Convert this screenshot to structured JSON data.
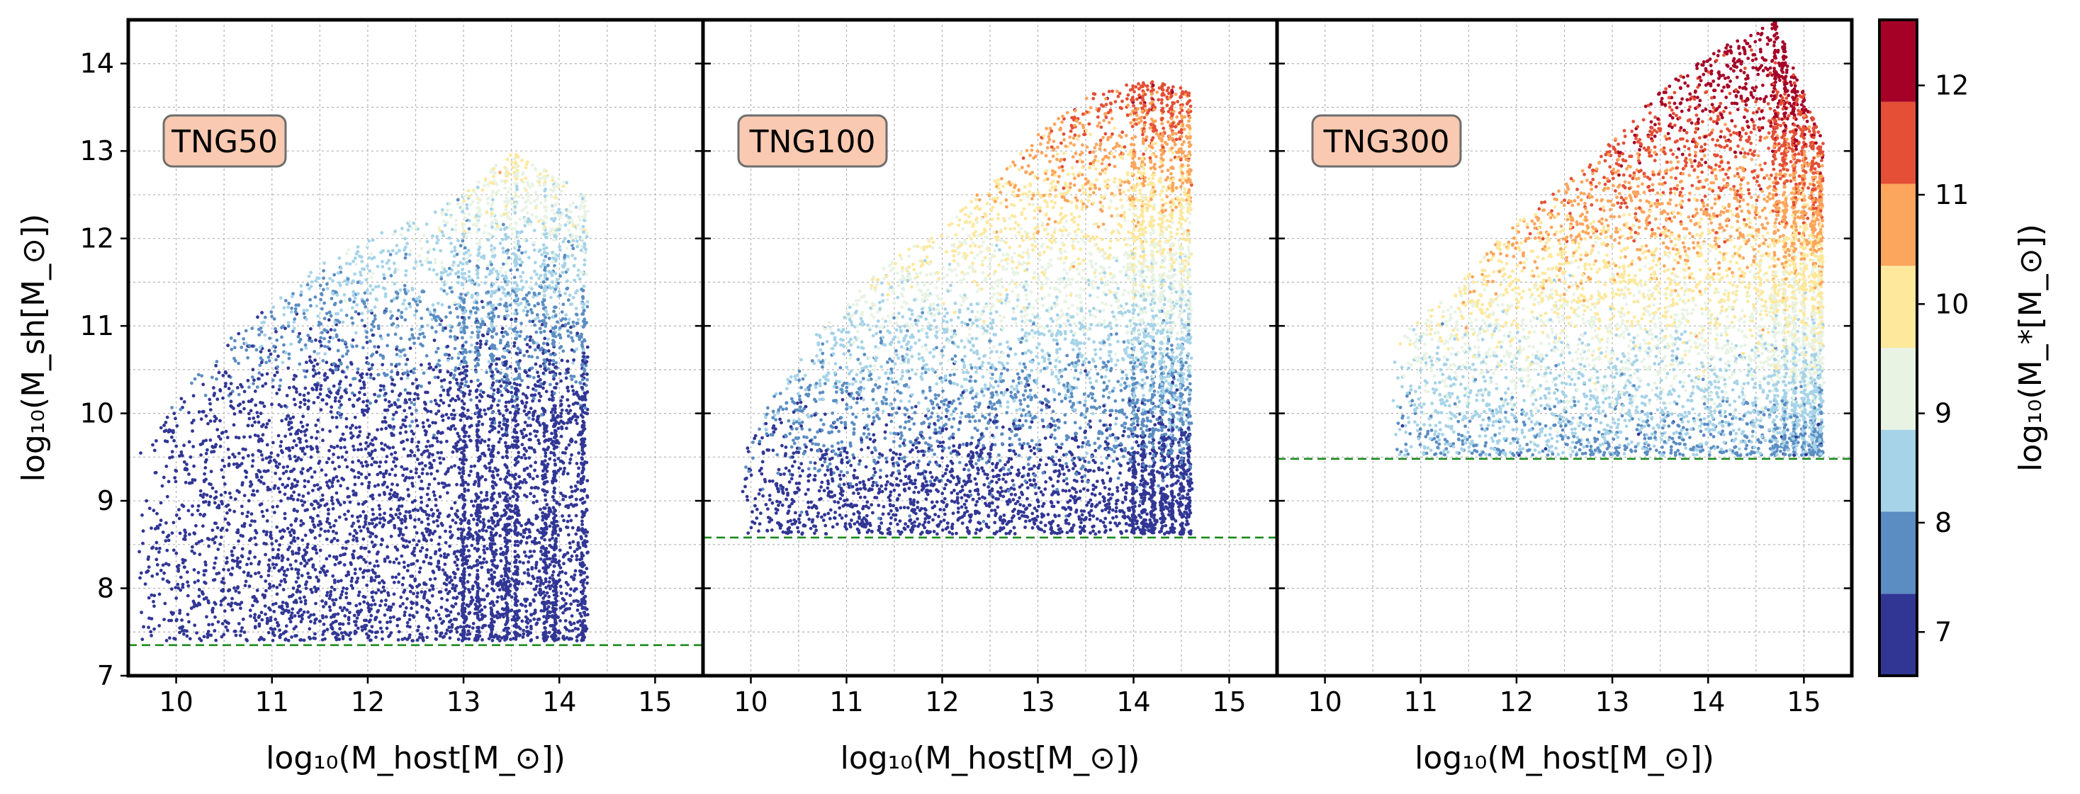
{
  "chart_data": {
    "type": "scatter",
    "shared": {
      "xlabel": "log₁₀(M_host[M_⊙])",
      "ylabel": "log₁₀(M_sh[M_⊙])",
      "xlim": [
        9.5,
        15.5
      ],
      "ylim": [
        7,
        14.5
      ],
      "xticks": [
        10,
        11,
        12,
        13,
        14,
        15
      ],
      "yticks": [
        7,
        8,
        9,
        10,
        11,
        12,
        13,
        14
      ],
      "grid": true,
      "grid_style": "dotted"
    },
    "colorbar": {
      "label": "log₁₀(M_*[M_⊙])",
      "min": 6.6,
      "max": 12.6,
      "ticks": [
        7,
        8,
        9,
        10,
        11,
        12
      ],
      "bins": [
        {
          "from": 6.6,
          "to": 7.35,
          "color": "#313695"
        },
        {
          "from": 7.35,
          "to": 8.1,
          "color": "#5b8dc2"
        },
        {
          "from": 8.1,
          "to": 8.85,
          "color": "#a6d3e8"
        },
        {
          "from": 8.85,
          "to": 9.6,
          "color": "#e8f3e4"
        },
        {
          "from": 9.6,
          "to": 10.35,
          "color": "#fee89c"
        },
        {
          "from": 10.35,
          "to": 11.1,
          "color": "#fca55d"
        },
        {
          "from": 11.1,
          "to": 11.85,
          "color": "#e44f35"
        },
        {
          "from": 11.85,
          "to": 12.6,
          "color": "#a50026"
        }
      ]
    },
    "panels": [
      {
        "label": "TNG50",
        "threshold_y": 7.35,
        "host_range": [
          9.6,
          14.3
        ],
        "sub_min": 7.4,
        "sub_max_at_host": [
          [
            9.6,
            9.6
          ],
          [
            10.5,
            10.8
          ],
          [
            11.5,
            11.7
          ],
          [
            12.2,
            12.1
          ],
          [
            13.0,
            12.5
          ],
          [
            13.5,
            13.0
          ],
          [
            14.3,
            12.5
          ]
        ],
        "columns": [
          13.0,
          13.15,
          13.3,
          13.45,
          13.55,
          13.85,
          13.95,
          14.25
        ],
        "stellar_offset": -3.2
      },
      {
        "label": "TNG100",
        "threshold_y": 8.58,
        "host_range": [
          9.9,
          14.6
        ],
        "sub_min": 8.62,
        "sub_max_at_host": [
          [
            9.9,
            9.6
          ],
          [
            10.5,
            10.7
          ],
          [
            11.5,
            11.8
          ],
          [
            12.0,
            12.1
          ],
          [
            13.0,
            13.2
          ],
          [
            13.6,
            13.7
          ],
          [
            14.2,
            13.8
          ],
          [
            14.6,
            13.7
          ]
        ],
        "columns": [
          14.0,
          14.1,
          14.2,
          14.3,
          14.4,
          14.5,
          14.58
        ],
        "stellar_offset": -2.3
      },
      {
        "label": "TNG300",
        "threshold_y": 9.48,
        "host_range": [
          10.7,
          15.2
        ],
        "sub_min": 9.52,
        "sub_max_at_host": [
          [
            10.7,
            10.8
          ],
          [
            11.5,
            11.6
          ],
          [
            12.0,
            12.2
          ],
          [
            12.8,
            12.9
          ],
          [
            13.5,
            13.7
          ],
          [
            14.0,
            14.1
          ],
          [
            14.7,
            14.5
          ],
          [
            15.2,
            13.1
          ]
        ],
        "columns": [
          14.7,
          14.8,
          14.9,
          15.0,
          15.1,
          15.17
        ],
        "stellar_offset": -1.6
      }
    ]
  }
}
